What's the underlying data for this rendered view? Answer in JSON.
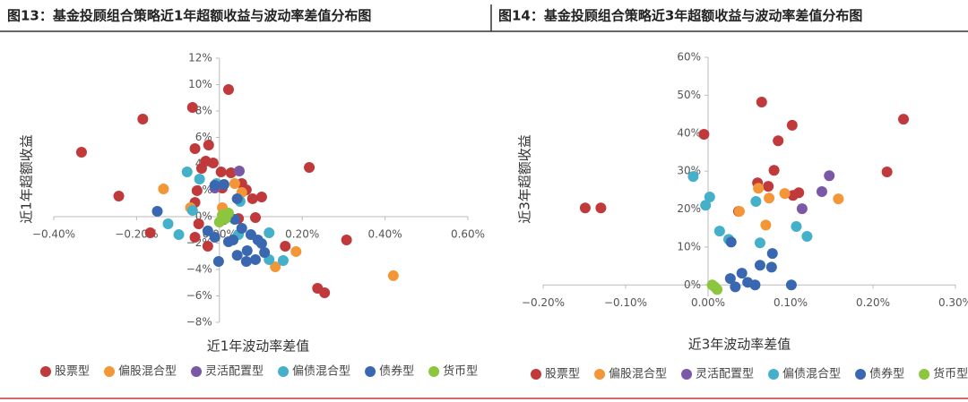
{
  "chart_data": [
    {
      "type": "scatter",
      "title": "图13：基金投顾组合策略近1年超额收益与波动率差值分布图",
      "x_label": "近1年波动率差值",
      "y_label": "近1年超额收益",
      "xlim": [
        -0.4,
        0.6
      ],
      "ylim": [
        -8,
        12
      ],
      "grid": false,
      "legend": "bottom",
      "xticks": [
        {
          "value": -0.4,
          "label": "−0.40%"
        },
        {
          "value": -0.2,
          "label": "−0.20%"
        },
        {
          "value": 0,
          "label": "0.00%"
        },
        {
          "value": 0.2,
          "label": "0.20%"
        },
        {
          "value": 0.4,
          "label": "0.40%"
        },
        {
          "value": 0.6,
          "label": "0.60%"
        }
      ],
      "yticks": [
        {
          "value": -8,
          "label": "−8%"
        },
        {
          "value": -6,
          "label": "−6%"
        },
        {
          "value": -4,
          "label": "−4%"
        },
        {
          "value": -2,
          "label": "−2%"
        },
        {
          "value": 0,
          "label": "0%"
        },
        {
          "value": 2,
          "label": "2%"
        },
        {
          "value": 4,
          "label": "4%"
        },
        {
          "value": 6,
          "label": "6%"
        },
        {
          "value": 8,
          "label": "8%"
        },
        {
          "value": 10,
          "label": "10%"
        },
        {
          "value": 12,
          "label": "12%"
        }
      ],
      "series": [
        {
          "name": "股票型",
          "color": "#c0393b",
          "x": [
            -0.333,
            -0.185,
            -0.243,
            -0.167,
            -0.065,
            0.022,
            -0.059,
            -0.026,
            0.217,
            0.307,
            0.237,
            0.254,
            0.159,
            -0.033,
            -0.015,
            -0.043,
            0.004,
            0.028,
            0.065,
            0.102,
            0.08,
            -0.054,
            -0.059,
            -0.05,
            -0.059,
            -0.028,
            0.054,
            0.007,
            0.046,
            0.087
          ],
          "values": [
            4.88,
            7.39,
            1.56,
            -1.22,
            8.27,
            9.63,
            5.15,
            5.42,
            3.73,
            -1.76,
            -5.42,
            -5.76,
            -2.24,
            4.2,
            4.07,
            3.66,
            3.39,
            3.32,
            2.03,
            1.49,
            1.36,
            1.97,
            1.08,
            -0.54,
            -1.56,
            -2.24,
            2.51,
            2.17,
            -0.14,
            -0.07
          ]
        },
        {
          "name": "偏股混合型",
          "color": "#f39638",
          "x": [
            -0.135,
            -0.07,
            0.037,
            0.054,
            0.185,
            0.135,
            0.42,
            0.007
          ],
          "values": [
            2.1,
            0.68,
            2.51,
            1.83,
            -2.64,
            -3.8,
            -4.47,
            0.68
          ]
        },
        {
          "name": "灵活配置型",
          "color": "#7b58a6",
          "x": [
            0.048,
            -0.011
          ],
          "values": [
            3.46,
            2.17
          ]
        },
        {
          "name": "偏债混合型",
          "color": "#45b0c9",
          "x": [
            -0.078,
            -0.048,
            -0.124,
            -0.098,
            -0.065,
            -0.007,
            0.05,
            0.12,
            0.12,
            0.154,
            0.046
          ],
          "values": [
            3.39,
            2.85,
            -0.54,
            -1.36,
            0.47,
            2.51,
            1.15,
            -1.22,
            -3.25,
            -3.32,
            -1.36
          ]
        },
        {
          "name": "债券型",
          "color": "#3a68b0",
          "x": [
            -0.15,
            -0.002,
            -0.011,
            0.011,
            0.043,
            0.037,
            0.054,
            0.076,
            0.093,
            0.109,
            0.065,
            0.087,
            0.043,
            0.022,
            -0.011,
            -0.028,
            0.011,
            0.033,
            0.102,
            0.067
          ],
          "values": [
            0.41,
            -3.39,
            2.37,
            2.44,
            1.36,
            -0.2,
            -0.88,
            -1.36,
            -1.76,
            -2.71,
            -3.39,
            -3.25,
            -2.92,
            -1.9,
            -1.56,
            -1.08,
            -0.2,
            -1.76,
            -2.03,
            -2.58
          ]
        },
        {
          "name": "货币型",
          "color": "#8cc63f",
          "x": [
            0.007,
            0.015,
            0,
            0.022
          ],
          "values": [
            0.14,
            -0.14,
            -0.41,
            0.27
          ]
        }
      ]
    },
    {
      "type": "scatter",
      "title": "图14：基金投顾组合策略近3年超额收益与波动率差值分布图",
      "x_label": "近3年波动率差值",
      "y_label": "近3年超额收益",
      "xlim": [
        -0.2,
        0.3
      ],
      "ylim": [
        -3,
        60
      ],
      "grid": false,
      "legend": "bottom",
      "xticks": [
        {
          "value": -0.2,
          "label": "−0.20%"
        },
        {
          "value": -0.1,
          "label": "−0.10%"
        },
        {
          "value": 0,
          "label": "0.00%"
        },
        {
          "value": 0.1,
          "label": "0.10%"
        },
        {
          "value": 0.2,
          "label": "0.20%"
        },
        {
          "value": 0.3,
          "label": "0.30%"
        }
      ],
      "yticks": [
        {
          "value": 0,
          "label": "0%"
        },
        {
          "value": 10,
          "label": "10%"
        },
        {
          "value": 20,
          "label": "20%"
        },
        {
          "value": 30,
          "label": "30%"
        },
        {
          "value": 40,
          "label": "40%"
        },
        {
          "value": 50,
          "label": "50%"
        },
        {
          "value": 60,
          "label": "60%"
        }
      ],
      "series": [
        {
          "name": "股票型",
          "color": "#c0393b",
          "x": [
            -0.149,
            -0.13,
            -0.005,
            0.065,
            0.102,
            0.085,
            0.08,
            0.06,
            0.073,
            0.037,
            0.103,
            0.11,
            0.217,
            0.237
          ],
          "values": [
            20.3,
            20.3,
            39.7,
            48.2,
            42.1,
            38.0,
            30.2,
            26.9,
            26.0,
            19.4,
            23.6,
            24.3,
            29.8,
            43.7
          ]
        },
        {
          "name": "偏股混合型",
          "color": "#f39638",
          "x": [
            0.061,
            0.038,
            0.074,
            0.07,
            0.093,
            0.158
          ],
          "values": [
            25.5,
            19.4,
            22.9,
            15.8,
            24.1,
            22.7
          ]
        },
        {
          "name": "灵活配置型",
          "color": "#7b58a6",
          "x": [
            0.147,
            0.138,
            0.114
          ],
          "values": [
            28.8,
            24.6,
            20.1
          ]
        },
        {
          "name": "偏债混合型",
          "color": "#45b0c9",
          "x": [
            -0.018,
            0.002,
            -0.003,
            0.014,
            0.025,
            0.058,
            0.063,
            0.107,
            0.12
          ],
          "values": [
            28.6,
            23.2,
            21.0,
            14.2,
            12.0,
            22.0,
            11.1,
            15.4,
            12.8
          ]
        },
        {
          "name": "债券型",
          "color": "#3a68b0",
          "x": [
            0.028,
            0.078,
            0.077,
            0.063,
            0.041,
            0.027,
            0.048,
            0.057,
            0.033,
            0.101
          ],
          "values": [
            11.3,
            8.3,
            4.7,
            5.2,
            3.1,
            1.7,
            0.7,
            0,
            -0.5,
            0
          ]
        },
        {
          "name": "货币型",
          "color": "#8cc63f",
          "x": [
            0.008,
            0.011,
            0.005
          ],
          "values": [
            -0.5,
            -1.2,
            0
          ]
        }
      ]
    }
  ]
}
